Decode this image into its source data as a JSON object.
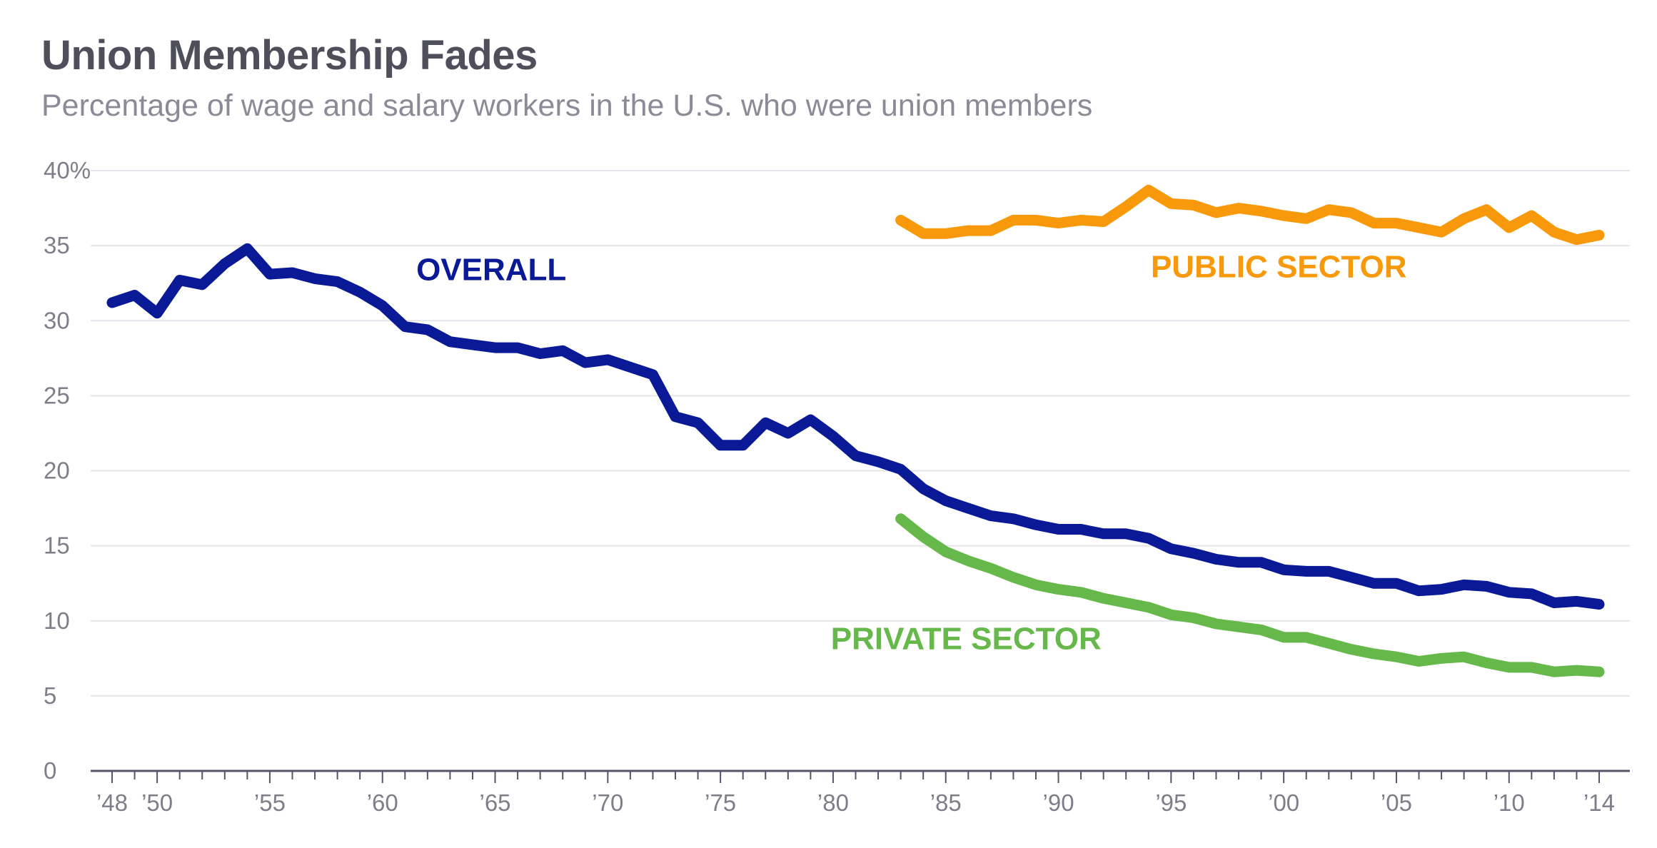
{
  "chart_data": {
    "type": "line",
    "title": "Union Membership Fades",
    "subtitle": "Percentage of wage and salary workers in the U.S. who were union members",
    "xlabel": "",
    "ylabel": "",
    "xlim": [
      1948,
      2014
    ],
    "ylim": [
      0,
      40
    ],
    "grid": true,
    "y_ticks": [
      {
        "value": 40,
        "label": "40%"
      },
      {
        "value": 35,
        "label": "35"
      },
      {
        "value": 30,
        "label": "30"
      },
      {
        "value": 25,
        "label": "25"
      },
      {
        "value": 20,
        "label": "20"
      },
      {
        "value": 15,
        "label": "15"
      },
      {
        "value": 10,
        "label": "10"
      },
      {
        "value": 5,
        "label": "5"
      },
      {
        "value": 0,
        "label": "0"
      }
    ],
    "x_tick_labels": [
      {
        "value": 1948,
        "label": "’48"
      },
      {
        "value": 1950,
        "label": "’50"
      },
      {
        "value": 1955,
        "label": "’55"
      },
      {
        "value": 1960,
        "label": "’60"
      },
      {
        "value": 1965,
        "label": "’65"
      },
      {
        "value": 1970,
        "label": "’70"
      },
      {
        "value": 1975,
        "label": "’75"
      },
      {
        "value": 1980,
        "label": "’80"
      },
      {
        "value": 1985,
        "label": "’85"
      },
      {
        "value": 1990,
        "label": "’90"
      },
      {
        "value": 1995,
        "label": "’95"
      },
      {
        "value": 2000,
        "label": "’00"
      },
      {
        "value": 2005,
        "label": "’05"
      },
      {
        "value": 2010,
        "label": "’10"
      },
      {
        "value": 2014,
        "label": "’14"
      }
    ],
    "series": [
      {
        "name": "OVERALL",
        "color": "#0a1a96",
        "label_anchor": {
          "x": 1961.5,
          "y": 32.7
        },
        "x": [
          1948,
          1949,
          1950,
          1951,
          1952,
          1953,
          1954,
          1955,
          1956,
          1957,
          1958,
          1959,
          1960,
          1961,
          1962,
          1963,
          1964,
          1965,
          1966,
          1967,
          1968,
          1969,
          1970,
          1971,
          1972,
          1973,
          1974,
          1975,
          1976,
          1977,
          1978,
          1979,
          1980,
          1981,
          1982,
          1983,
          1984,
          1985,
          1986,
          1987,
          1988,
          1989,
          1990,
          1991,
          1992,
          1993,
          1994,
          1995,
          1996,
          1997,
          1998,
          1999,
          2000,
          2001,
          2002,
          2003,
          2004,
          2005,
          2006,
          2007,
          2008,
          2009,
          2010,
          2011,
          2012,
          2013,
          2014
        ],
        "values": [
          31.2,
          31.7,
          30.5,
          32.7,
          32.4,
          33.8,
          34.8,
          33.1,
          33.2,
          32.8,
          32.6,
          31.9,
          31.0,
          29.6,
          29.4,
          28.6,
          28.4,
          28.2,
          28.2,
          27.8,
          28.0,
          27.2,
          27.4,
          26.9,
          26.4,
          23.6,
          23.2,
          21.7,
          21.7,
          23.2,
          22.5,
          23.4,
          22.3,
          21.0,
          20.6,
          20.1,
          18.8,
          18.0,
          17.5,
          17.0,
          16.8,
          16.4,
          16.1,
          16.1,
          15.8,
          15.8,
          15.5,
          14.8,
          14.5,
          14.1,
          13.9,
          13.9,
          13.4,
          13.3,
          13.3,
          12.9,
          12.5,
          12.5,
          12.0,
          12.1,
          12.4,
          12.3,
          11.9,
          11.8,
          11.2,
          11.3,
          11.1
        ]
      },
      {
        "name": "PUBLIC SECTOR",
        "color": "#f7990a",
        "label_anchor": {
          "x": 1994.1,
          "y": 32.9
        },
        "x": [
          1983,
          1984,
          1985,
          1986,
          1987,
          1988,
          1989,
          1990,
          1991,
          1992,
          1993,
          1994,
          1995,
          1996,
          1997,
          1998,
          1999,
          2000,
          2001,
          2002,
          2003,
          2004,
          2005,
          2006,
          2007,
          2008,
          2009,
          2010,
          2011,
          2012,
          2013,
          2014
        ],
        "values": [
          36.7,
          35.8,
          35.8,
          36.0,
          36.0,
          36.7,
          36.7,
          36.5,
          36.7,
          36.6,
          37.6,
          38.7,
          37.8,
          37.7,
          37.2,
          37.5,
          37.3,
          37.0,
          36.8,
          37.4,
          37.2,
          36.5,
          36.5,
          36.2,
          35.9,
          36.8,
          37.4,
          36.2,
          37.0,
          35.9,
          35.4,
          35.7
        ]
      },
      {
        "name": "PRIVATE SECTOR",
        "color": "#66b84a",
        "label_anchor": {
          "x": 1979.9,
          "y": 8.1
        },
        "x": [
          1983,
          1984,
          1985,
          1986,
          1987,
          1988,
          1989,
          1990,
          1991,
          1992,
          1993,
          1994,
          1995,
          1996,
          1997,
          1998,
          1999,
          2000,
          2001,
          2002,
          2003,
          2004,
          2005,
          2006,
          2007,
          2008,
          2009,
          2010,
          2011,
          2012,
          2013,
          2014
        ],
        "values": [
          16.8,
          15.6,
          14.6,
          14.0,
          13.5,
          12.9,
          12.4,
          12.1,
          11.9,
          11.5,
          11.2,
          10.9,
          10.4,
          10.2,
          9.8,
          9.6,
          9.4,
          8.9,
          8.9,
          8.5,
          8.1,
          7.8,
          7.6,
          7.3,
          7.5,
          7.6,
          7.2,
          6.9,
          6.9,
          6.6,
          6.7,
          6.6
        ]
      }
    ]
  }
}
